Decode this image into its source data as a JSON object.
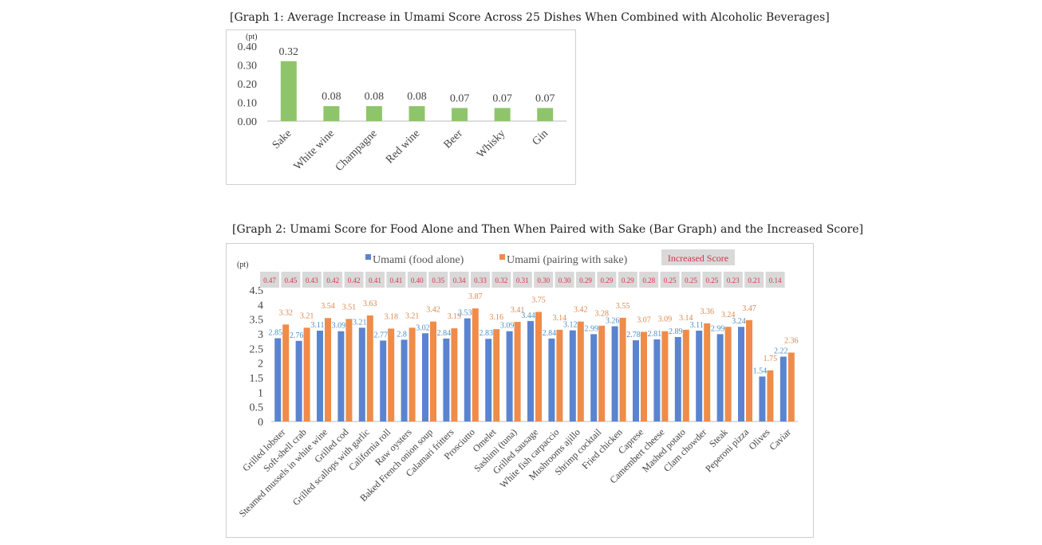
{
  "chart_data": [
    {
      "type": "bar",
      "title": "[Graph 1: Average Increase in Umami Score Across 25 Dishes When Combined with Alcoholic Beverages]",
      "ylabel": "(pt)",
      "ylim": [
        0,
        0.4
      ],
      "yticks": [
        "0.00",
        "0.10",
        "0.20",
        "0.30",
        "0.40"
      ],
      "categories": [
        "Sake",
        "White wine",
        "Champagne",
        "Red wine",
        "Beer",
        "Whisky",
        "Gin"
      ],
      "values": [
        0.32,
        0.08,
        0.08,
        0.08,
        0.07,
        0.07,
        0.07
      ],
      "data_labels": [
        "0.32",
        "0.08",
        "0.08",
        "0.08",
        "0.07",
        "0.07",
        "0.07"
      ],
      "colors": {
        "bar": "#8fc56a"
      },
      "grid": false
    },
    {
      "type": "bar",
      "title": "[Graph 2: Umami Score for Food Alone and Then When Paired with Sake (Bar Graph) and the Increased Score]",
      "ylabel": "(pt)",
      "ylim": [
        0,
        4.5
      ],
      "yticks": [
        "0",
        "0.5",
        "1",
        "1.5",
        "2",
        "2.5",
        "3",
        "3.5",
        "4",
        "4.5"
      ],
      "legend_position": "top",
      "increase_legend": "Increased Score",
      "categories": [
        "Grilled lobster",
        "Soft-shell crab",
        "Steamed mussels in white wine",
        "Grilled cod",
        "Grilled scallops with garlic",
        "California roll",
        "Raw oysters",
        "Baked French onion soup",
        "Calamari fritters",
        "Prosciutto",
        "Omelet",
        "Sashimi (tuna)",
        "Grilled sausage",
        "White fish carpaccio",
        "Mushrooms ajillo",
        "Shrimp cocktail",
        "Fried chicken",
        "Caprese",
        "Camembert cheese",
        "Mashed potato",
        "Clam chowder",
        "Steak",
        "Peperoni pizza",
        "Olives",
        "Caviar"
      ],
      "series": [
        {
          "name": "Umami (food alone)",
          "color": "#5b84d0",
          "values": [
            2.85,
            2.76,
            3.11,
            3.09,
            3.21,
            2.77,
            2.8,
            3.02,
            2.84,
            3.53,
            2.83,
            3.09,
            3.44,
            2.84,
            3.12,
            2.99,
            3.26,
            2.78,
            2.81,
            2.89,
            3.11,
            2.99,
            3.24,
            1.54,
            2.22
          ],
          "labels": [
            "2.85",
            "2.76",
            "3.11",
            "3.09",
            "3.21",
            "2.77",
            "2.8",
            "3.02",
            "2.84",
            "3.53",
            "2.83",
            "3.09",
            "3.44",
            "2.84",
            "3.12",
            "2.99",
            "3.26",
            "2.78",
            "2.81",
            "2.89",
            "3.11",
            "2.99",
            "3.24",
            "1.54",
            "2.22"
          ]
        },
        {
          "name": "Umami (pairing with sake)",
          "color": "#ef8c4a",
          "values": [
            3.32,
            3.21,
            3.54,
            3.51,
            3.63,
            3.18,
            3.21,
            3.42,
            3.19,
            3.87,
            3.16,
            3.41,
            3.75,
            3.14,
            3.42,
            3.28,
            3.55,
            3.07,
            3.09,
            3.14,
            3.36,
            3.24,
            3.47,
            1.75,
            2.36
          ],
          "labels": [
            "3.32",
            "3.21",
            "3.54",
            "3.51",
            "3.63",
            "3.18",
            "3.21",
            "3.42",
            "3.19",
            "3.87",
            "3.16",
            "3.41",
            "3.75",
            "3.14",
            "3.42",
            "3.28",
            "3.55",
            "3.07",
            "3.09",
            "3.14",
            "3.36",
            "3.24",
            "3.47",
            "1.75",
            "2.36"
          ]
        }
      ],
      "increase": [
        "0.47",
        "0.45",
        "0.43",
        "0.42",
        "0.42",
        "0.41",
        "0.41",
        "0.40",
        "0.35",
        "0.34",
        "0.33",
        "0.32",
        "0.31",
        "0.30",
        "0.30",
        "0.29",
        "0.29",
        "0.29",
        "0.28",
        "0.25",
        "0.25",
        "0.25",
        "0.23",
        "0.21",
        "0.14"
      ],
      "grid": false
    }
  ]
}
